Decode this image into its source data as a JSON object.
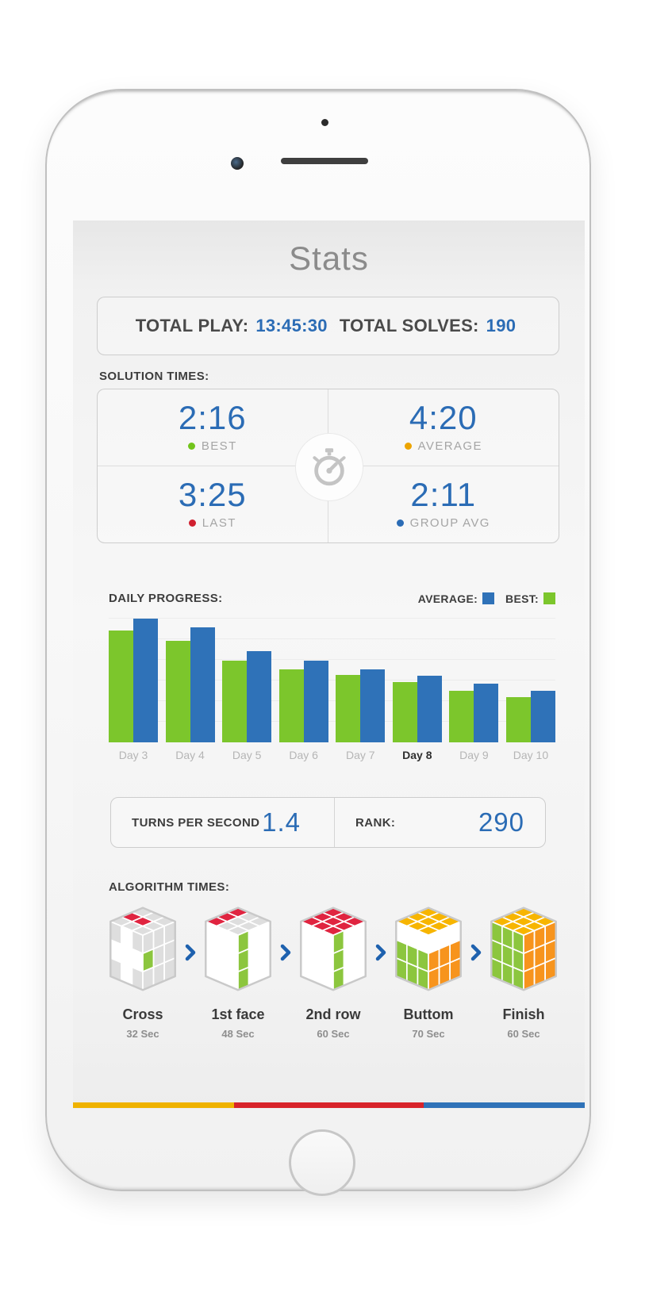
{
  "app": {
    "title": "Stats",
    "totals": {
      "play_label": "TOTAL PLAY:",
      "play_value": "13:45:30",
      "solves_label": "TOTAL SOLVES:",
      "solves_value": "190"
    },
    "solution_times": {
      "heading": "SOLUTION TIMES:",
      "stats": [
        {
          "value": "2:16",
          "label": "BEST",
          "color": "#72c41c"
        },
        {
          "value": "4:20",
          "label": "AVERAGE",
          "color": "#eca400"
        },
        {
          "value": "3:25",
          "label": "LAST",
          "color": "#d02030"
        },
        {
          "value": "2:11",
          "label": "GROUP AVG",
          "color": "#2b6cb5"
        }
      ]
    },
    "daily_progress": {
      "heading": "DAILY PROGRESS:",
      "legend": [
        {
          "label": "AVERAGE:",
          "color": "#2f72b8"
        },
        {
          "label": "BEST:",
          "color": "#7cc62c"
        }
      ]
    },
    "turns": {
      "label": "TURNS PER SECOND",
      "value": "1.4",
      "rank_label": "RANK:",
      "rank_value": "290"
    },
    "algorithm_times": {
      "heading": "ALGORITHM TIMES:",
      "steps": [
        {
          "name": "Cross",
          "time": "32 Sec",
          "cube": {
            "top": "GRG,GRG,GGG",
            "front": "GWG,WWW,GWG",
            "right": "GGG,LGG,GGG"
          }
        },
        {
          "name": "1st face",
          "time": "48 Sec",
          "cube": {
            "top": "RRR,GGG,GGG",
            "front": "WWW,WWW,WWW",
            "right": "LWW,LWW,LWW"
          }
        },
        {
          "name": "2nd row",
          "time": "60 Sec",
          "cube": {
            "top": "RRR,RRR,RRR",
            "front": "WWW,WWW,WWW",
            "right": "LWW,LWW,LWW"
          }
        },
        {
          "name": "Buttom",
          "time": "70 Sec",
          "cube": {
            "top": "YYY,YYY,YYY",
            "front": "WWW,LLL,LLL",
            "right": "WWW,OOO,OOO"
          }
        },
        {
          "name": "Finish",
          "time": "60 Sec",
          "cube": {
            "top": "YYY,YYY,YYY",
            "front": "LLL,LLL,LLL",
            "right": "OOO,OOO,OOO"
          }
        }
      ],
      "cube_colors": {
        "W": "#ffffff",
        "G": "#dedede",
        "R": "#e02440",
        "L": "#8cc63e",
        "Y": "#f7b500",
        "O": "#f7941d"
      },
      "chevron_color": "#1e61ae"
    },
    "footer_bar": [
      {
        "color": "#efb200",
        "width_pct": 31.5
      },
      {
        "color": "#d8232a",
        "width_pct": 37
      },
      {
        "color": "#2f72b8",
        "width_pct": 31.5
      }
    ],
    "accent_colors": {
      "blue": "#2b6cb5",
      "green": "#7cc62c",
      "yellow": "#eca400",
      "red": "#d02030"
    }
  },
  "chart_data": {
    "type": "bar",
    "title": "DAILY PROGRESS:",
    "categories": [
      "Day 3",
      "Day 4",
      "Day 5",
      "Day 6",
      "Day 7",
      "Day 8",
      "Day 9",
      "Day 10"
    ],
    "series": [
      {
        "name": "AVERAGE",
        "color": "#2f72b8",
        "values": [
          99,
          92,
          73,
          65,
          58,
          53,
          47,
          41
        ]
      },
      {
        "name": "BEST",
        "color": "#7cc62c",
        "values": [
          89,
          81,
          65,
          58,
          54,
          48,
          41,
          36
        ]
      }
    ],
    "highlighted_category": "Day 8",
    "xlabel": "",
    "ylabel": "",
    "ylim": [
      0,
      100
    ],
    "grid": true,
    "legend_position": "top-right",
    "note": "No numeric axis shown in UI; values are relative bar heights (percent of tallest bar)."
  }
}
